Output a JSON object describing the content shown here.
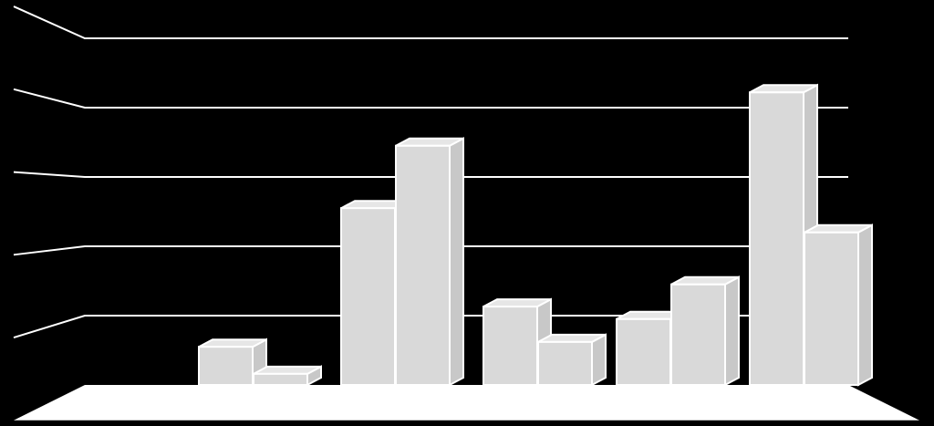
{
  "chart_data": {
    "type": "bar3d",
    "categories": [
      null,
      null,
      null,
      null,
      null
    ],
    "series": [
      {
        "color": "#d9d9d9",
        "values": [
          0.55,
          2.55,
          1.13,
          0.95,
          4.22
        ]
      },
      {
        "color": "#d9d9d9",
        "values": [
          0.16,
          3.45,
          0.62,
          1.45,
          2.2
        ]
      }
    ],
    "ylim": [
      0,
      5
    ],
    "yticks": [
      0,
      1,
      2,
      3,
      4,
      5
    ],
    "grid": true
  }
}
